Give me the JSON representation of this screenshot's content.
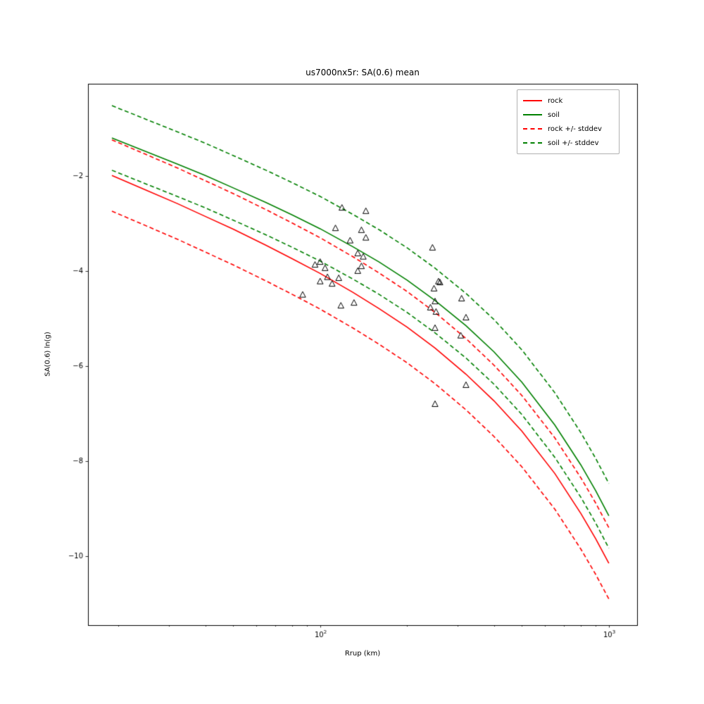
{
  "chart_data": {
    "type": "line",
    "title": "us7000nx5r: SA(0.6) mean",
    "xlabel": "Rrup (km)",
    "ylabel": "SA(0.6) ln(g)",
    "xscale": "log",
    "grid": false,
    "legend_position": "upper right",
    "xlim": [
      15.7,
      1253
    ],
    "ylim": [
      -11.45,
      -0.06
    ],
    "yticks": [
      {
        "value": -2,
        "label": "−2"
      },
      {
        "value": -4,
        "label": "−4"
      },
      {
        "value": -6,
        "label": "−6"
      },
      {
        "value": -8,
        "label": "−8"
      },
      {
        "value": -10,
        "label": "−10"
      }
    ],
    "xticks": [
      {
        "value": 100,
        "base": "10",
        "exp": "2"
      },
      {
        "value": 1000,
        "base": "10",
        "exp": "3"
      }
    ],
    "x_minor_ticks": [
      20,
      30,
      40,
      50,
      60,
      70,
      80,
      90,
      200,
      300,
      400,
      500,
      600,
      700,
      800,
      900
    ],
    "x": [
      19,
      25,
      32,
      40,
      50,
      65,
      80,
      100,
      130,
      160,
      200,
      250,
      320,
      400,
      500,
      650,
      800,
      900,
      1000
    ],
    "series": [
      {
        "name": "rock",
        "color": "#ff0000",
        "style": "solid",
        "stddev": 0.75,
        "values": [
          -1.99,
          -2.3,
          -2.58,
          -2.85,
          -3.12,
          -3.46,
          -3.74,
          -4.05,
          -4.45,
          -4.79,
          -5.18,
          -5.62,
          -6.17,
          -6.73,
          -7.37,
          -8.26,
          -9.1,
          -9.63,
          -10.15
        ]
      },
      {
        "name": "soil",
        "color": "#008000",
        "style": "solid",
        "stddev": 0.68,
        "values": [
          -1.2,
          -1.49,
          -1.75,
          -1.99,
          -2.25,
          -2.56,
          -2.82,
          -3.11,
          -3.49,
          -3.81,
          -4.19,
          -4.62,
          -5.15,
          -5.7,
          -6.34,
          -7.24,
          -8.08,
          -8.62,
          -9.15
        ]
      }
    ],
    "stddev_bands": [
      {
        "base": "rock",
        "label": "rock +/- stddev",
        "color": "#ff0000",
        "style": "dashed"
      },
      {
        "base": "soil",
        "label": "soil +/- stddev",
        "color": "#008000",
        "style": "dashed"
      }
    ],
    "scatter": {
      "marker": "triangle-up-hollow",
      "edge_color": "#000000",
      "points": [
        [
          119,
          -2.67
        ],
        [
          144,
          -2.74
        ],
        [
          113,
          -3.1
        ],
        [
          139,
          -3.14
        ],
        [
          127,
          -3.36
        ],
        [
          144,
          -3.3
        ],
        [
          245,
          -3.51
        ],
        [
          135,
          -3.63
        ],
        [
          141,
          -3.7
        ],
        [
          100,
          -3.81
        ],
        [
          96,
          -3.87
        ],
        [
          104,
          -3.94
        ],
        [
          139,
          -3.9
        ],
        [
          135,
          -4.0
        ],
        [
          106,
          -4.13
        ],
        [
          116,
          -4.15
        ],
        [
          100,
          -4.22
        ],
        [
          110,
          -4.27
        ],
        [
          257,
          -4.22
        ],
        [
          260,
          -4.24
        ],
        [
          248,
          -4.37
        ],
        [
          87,
          -4.5
        ],
        [
          309,
          -4.58
        ],
        [
          250,
          -4.64
        ],
        [
          118,
          -4.73
        ],
        [
          131,
          -4.67
        ],
        [
          241,
          -4.77
        ],
        [
          252,
          -4.86
        ],
        [
          320,
          -4.98
        ],
        [
          250,
          -5.2
        ],
        [
          307,
          -5.36
        ],
        [
          320,
          -6.4
        ],
        [
          250,
          -6.8
        ]
      ]
    },
    "legend": {
      "entries": [
        {
          "label": "rock",
          "color": "#ff0000",
          "dash": "solid"
        },
        {
          "label": "soil",
          "color": "#008000",
          "dash": "solid"
        },
        {
          "label": "rock +/- stddev",
          "color": "#ff0000",
          "dash": "dashed"
        },
        {
          "label": "soil +/- stddev",
          "color": "#008000",
          "dash": "dashed"
        }
      ]
    }
  }
}
